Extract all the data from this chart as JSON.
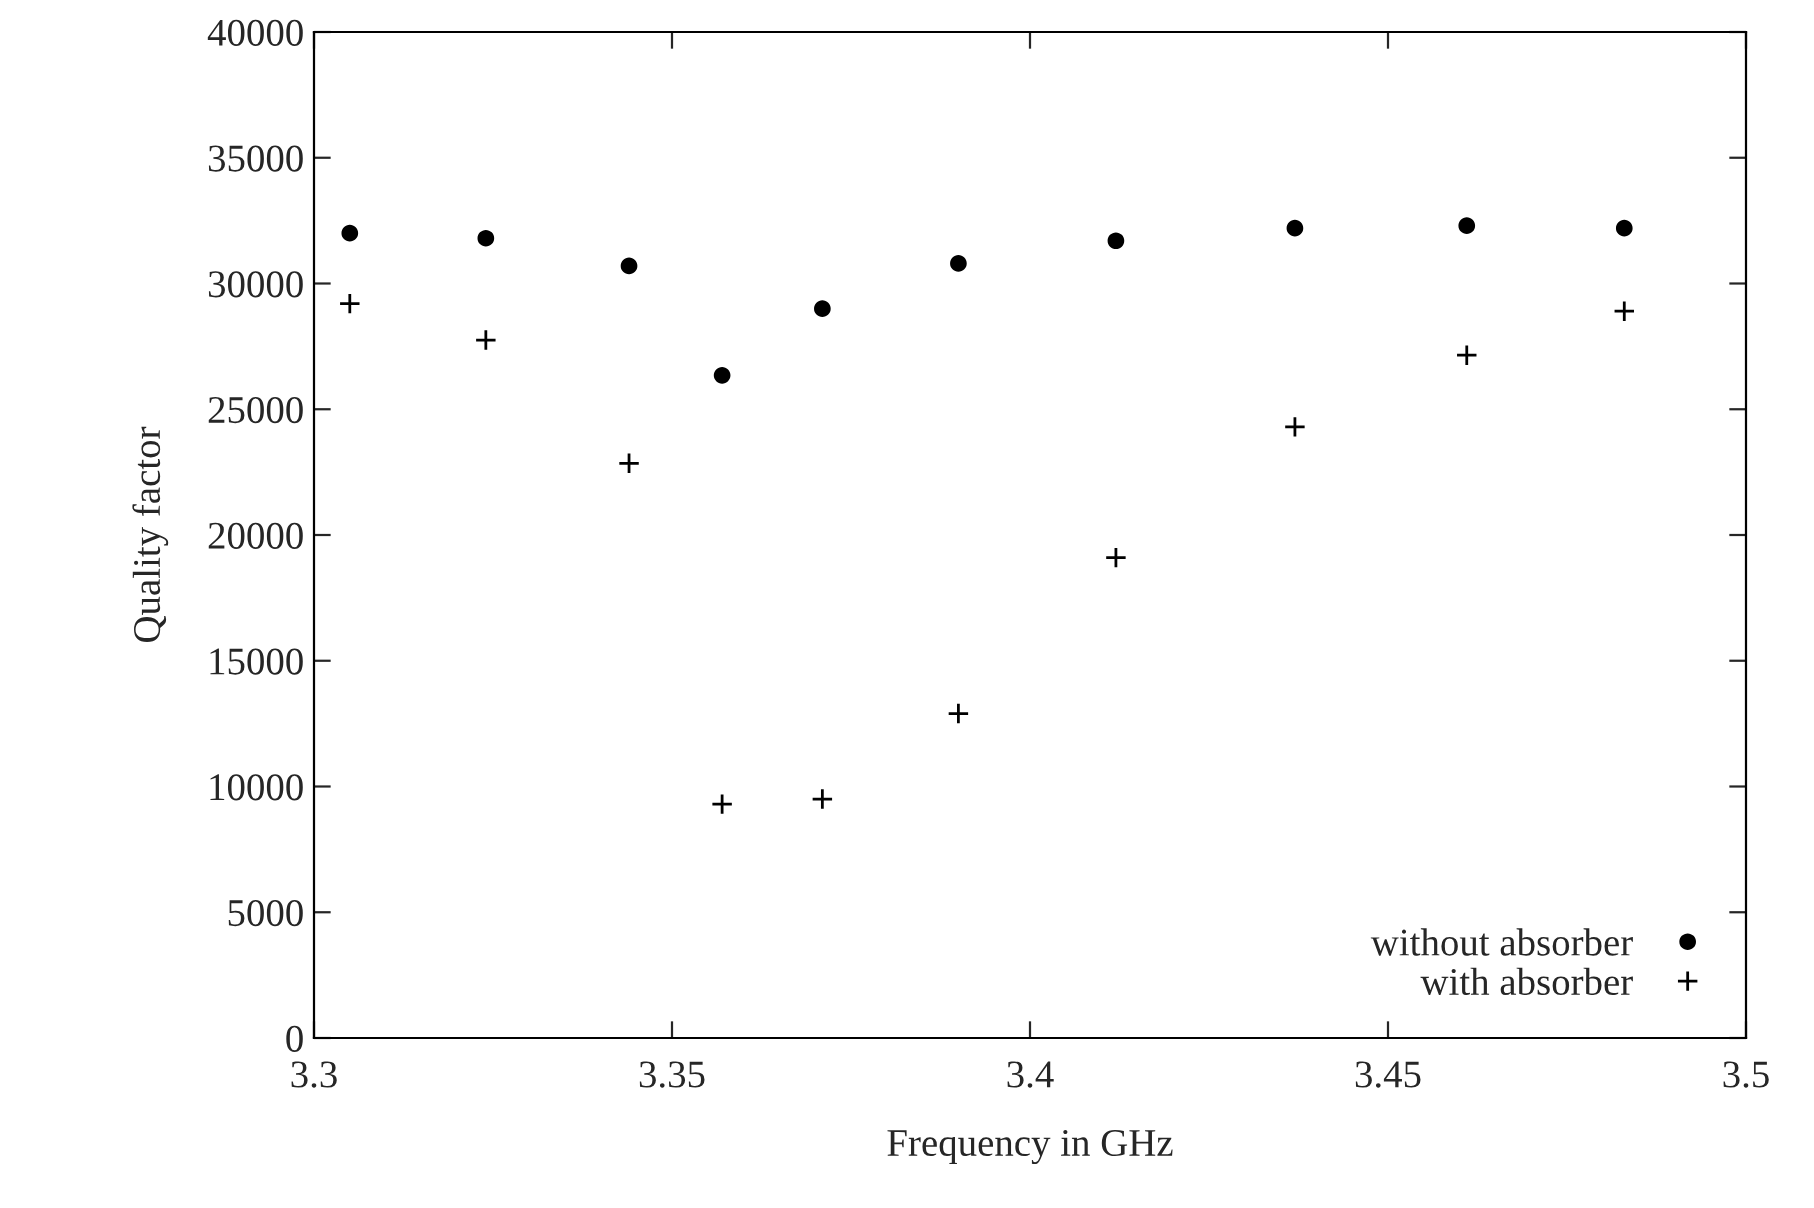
{
  "chart_data": {
    "type": "scatter",
    "xlabel": "Frequency in GHz",
    "ylabel": "Quality factor",
    "x": [
      3.305,
      3.324,
      3.344,
      3.357,
      3.371,
      3.39,
      3.412,
      3.437,
      3.461,
      3.483
    ],
    "series": [
      {
        "name": "without absorber",
        "color": "#000000",
        "marker": "circle",
        "values": [
          32000,
          31800,
          30700,
          26350,
          29000,
          30800,
          31700,
          32200,
          32300,
          32200
        ]
      },
      {
        "name": "with absorber",
        "color": "#000000",
        "marker": "cross",
        "values": [
          29200,
          27750,
          22850,
          9300,
          9500,
          12900,
          19100,
          24300,
          27150,
          28900
        ]
      }
    ],
    "xlim": [
      3.3,
      3.5
    ],
    "xticks": [
      3.3,
      3.35,
      3.4,
      3.45,
      3.5
    ],
    "ylim": [
      0,
      40000
    ],
    "yticks": [
      0,
      5000,
      10000,
      15000,
      20000,
      25000,
      30000,
      35000,
      40000
    ],
    "grid": false,
    "legend": "bottom right"
  }
}
